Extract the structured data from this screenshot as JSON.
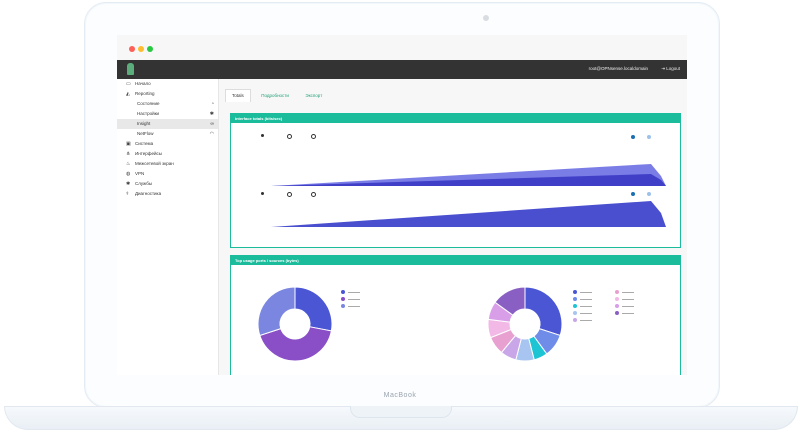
{
  "device": {
    "label": "MacBook"
  },
  "window": {
    "controls": [
      {
        "name": "close",
        "color": "#ff5f57"
      },
      {
        "name": "minimize",
        "color": "#febc2e"
      },
      {
        "name": "maximize",
        "color": "#28c840"
      }
    ]
  },
  "topbar": {
    "user": "root@OPNsense.localdomain",
    "logout_label": "Logout",
    "logout_icon": "sign-out-icon"
  },
  "sidebar": {
    "items": [
      {
        "label": "Начало",
        "icon": "laptop-icon"
      },
      {
        "label": "Reporting",
        "icon": "area-chart-icon"
      },
      {
        "label": "Система",
        "icon": "desktop-icon"
      },
      {
        "label": "Интерфейсы",
        "icon": "sitemap-icon"
      },
      {
        "label": "Межсетевой экран",
        "icon": "fire-icon"
      },
      {
        "label": "VPN",
        "icon": "globe-icon"
      },
      {
        "label": "Службы",
        "icon": "cog-icon"
      },
      {
        "label": "Диагностика",
        "icon": "stethoscope-icon"
      }
    ],
    "reporting_sub": [
      {
        "label": "Состояние",
        "icon": "dashboard-icon"
      },
      {
        "label": "Настройки",
        "icon": "cog-icon"
      },
      {
        "label": "Insight",
        "icon": "binoculars-icon",
        "active": true
      },
      {
        "label": "NetFlow",
        "icon": "rss-icon"
      }
    ]
  },
  "tabs": [
    {
      "label": "Totals",
      "active": true
    },
    {
      "label": "Подробности"
    },
    {
      "label": "Экспорт"
    }
  ],
  "panels": {
    "interface_totals": {
      "title": "Interface totals (bits/sec)"
    },
    "top_usage": {
      "title": "Top usage ports / sources (bytes)"
    }
  },
  "colors": {
    "accent": "#1abc9c",
    "area_dark": "#3f3fc8",
    "area_light": "#7b7de6",
    "topbar": "#333333"
  },
  "chart_data": [
    {
      "type": "area",
      "series": [
        {
          "values": [
            0,
            1,
            2,
            3,
            4,
            5,
            6,
            7,
            8,
            9,
            10,
            9
          ]
        },
        {
          "values": [
            0,
            0.5,
            1,
            1.5,
            2,
            2.5,
            3,
            3.5,
            4,
            4.5,
            5,
            4
          ]
        }
      ]
    },
    {
      "type": "area",
      "series": [
        {
          "values": [
            0,
            1,
            2,
            3,
            4,
            5,
            6,
            7,
            8,
            9,
            10,
            9
          ]
        }
      ]
    },
    {
      "type": "pie",
      "values": [
        28,
        42,
        30
      ],
      "colors": [
        "#4a56d4",
        "#8a4fc7",
        "#7a86e0"
      ]
    },
    {
      "type": "pie",
      "values": [
        30,
        10,
        6,
        8,
        7,
        8,
        8,
        8,
        15
      ],
      "colors": [
        "#4a56d4",
        "#6f8ce8",
        "#1dc4d4",
        "#a8c4f0",
        "#c9a6e8",
        "#e8a0d0",
        "#f2b8e6",
        "#d89ee8",
        "#8a5fc4"
      ]
    }
  ]
}
